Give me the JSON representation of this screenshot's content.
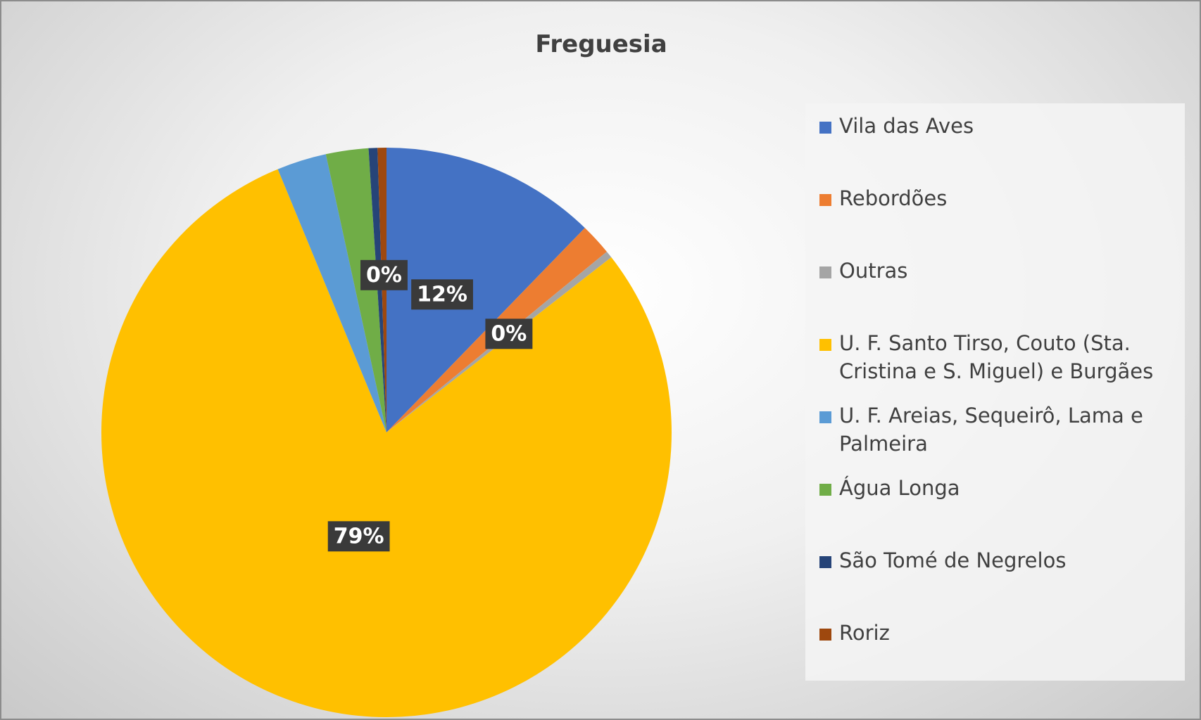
{
  "chart_data": {
    "type": "pie",
    "title": "Freguesia",
    "categories": [
      "Vila das Aves",
      "Rebordões",
      "Outras",
      "U. F. Santo Tirso, Couto (Sta. Cristina e S. Miguel) e Burgães",
      "U. F. Areias, Sequeirô, Lama e Palmeira",
      "Água Longa",
      "São Tomé de Negrelos",
      "Roriz"
    ],
    "values": [
      12.2,
      1.8,
      0.4,
      79,
      2.8,
      2.4,
      0.5,
      0.5
    ],
    "value_labels": [
      "12%",
      null,
      "0%",
      "79%",
      null,
      null,
      null,
      "0%"
    ],
    "colors": [
      "#4472c4",
      "#ed7d31",
      "#a5a5a5",
      "#ffc000",
      "#5b9bd5",
      "#70ad47",
      "#264478",
      "#9e480e"
    ],
    "legend": "right"
  }
}
